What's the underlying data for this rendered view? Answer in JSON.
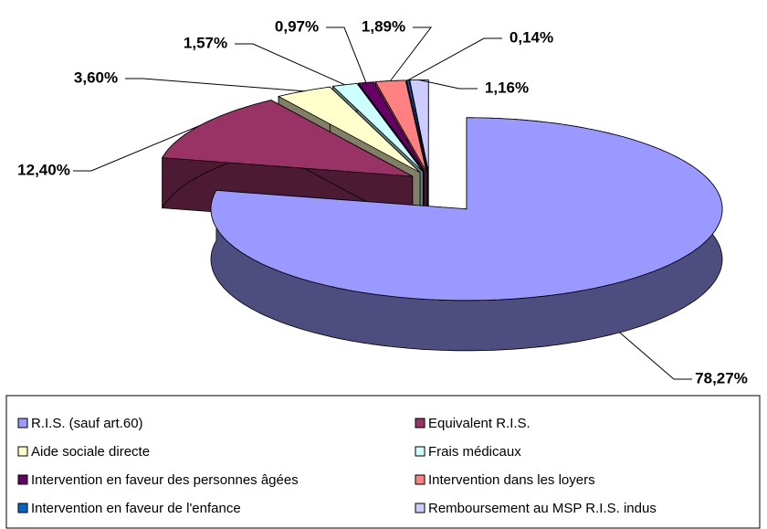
{
  "chart_data": {
    "type": "pie",
    "three_d": true,
    "categories": [
      "R.I.S. (sauf art.60)",
      "Equivalent  R.I.S.",
      "Aide sociale directe",
      "Frais médicaux",
      "Intervention en faveur des personnes âgées",
      "Intervention dans les loyers",
      "Intervention en faveur de l'enfance",
      "Remboursement au MSP R.I.S. indus"
    ],
    "values": [
      78.27,
      12.4,
      3.6,
      1.57,
      0.97,
      1.89,
      0.14,
      1.16
    ],
    "value_labels": [
      "78,27%",
      "12,40%",
      "3,60%",
      "1,57%",
      "0,97%",
      "1,89%",
      "0,14%",
      "1,16%"
    ],
    "colors": [
      "#9999ff",
      "#993366",
      "#ffffcc",
      "#ccffff",
      "#660066",
      "#ff8080",
      "#0066cc",
      "#ccccff"
    ],
    "legend": "bottom"
  }
}
